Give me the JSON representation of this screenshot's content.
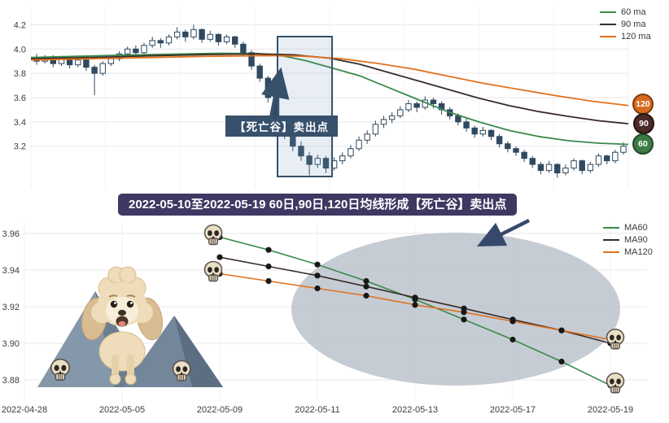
{
  "colors": {
    "candle": "#2e4960",
    "highlight": "#37506b",
    "annotation_bg": "#37506b",
    "banner_bg": "#3e3862",
    "arrow": "#36486b",
    "ellipse": "#bcc3cc",
    "dot": "#181818",
    "grid": "#e9e9ec"
  },
  "top_chart": {
    "legend": [
      {
        "label": "60 ma",
        "color": "#3a8a4d"
      },
      {
        "label": "90 ma",
        "color": "#3a2d28"
      },
      {
        "label": "120 ma",
        "color": "#e2711d"
      }
    ],
    "annotation_label": "【死亡谷】卖出点",
    "badges": [
      {
        "label": "120",
        "bg": "#d8691f",
        "border": "#7a3c10"
      },
      {
        "label": "90",
        "bg": "#4a2b26",
        "border": "#241310"
      },
      {
        "label": "60",
        "bg": "#3c7b47",
        "border": "#1f4a28"
      }
    ]
  },
  "banner": {
    "text": "2022-05-10至2022-05-19 60日,90日,120日均线形成【死亡谷】卖出点"
  },
  "bottom_chart": {
    "legend": [
      {
        "label": "MA60",
        "color": "#3a8a4d"
      },
      {
        "label": "MA90",
        "color": "#3a2d28"
      },
      {
        "label": "MA120",
        "color": "#e2711d"
      }
    ]
  },
  "chart_data": [
    {
      "type": "candlestick",
      "title": "",
      "ylim": [
        2.85,
        4.35
      ],
      "y_ticks": [
        4.2,
        4.0,
        3.8,
        3.6,
        3.4,
        3.2
      ],
      "legend": [
        "60 ma",
        "90 ma",
        "120 ma"
      ],
      "annotation": "【死亡谷】卖出点",
      "highlight_region_note": "死亡谷卖出点区间",
      "ohlc": [
        [
          3.93,
          3.96,
          3.87,
          3.9
        ],
        [
          3.9,
          3.95,
          3.88,
          3.93
        ],
        [
          3.93,
          3.95,
          3.85,
          3.88
        ],
        [
          3.88,
          3.94,
          3.86,
          3.92
        ],
        [
          3.92,
          3.93,
          3.84,
          3.87
        ],
        [
          3.87,
          3.93,
          3.85,
          3.91
        ],
        [
          3.91,
          3.92,
          3.82,
          3.85
        ],
        [
          3.85,
          3.87,
          3.62,
          3.8
        ],
        [
          3.8,
          3.9,
          3.78,
          3.88
        ],
        [
          3.88,
          3.94,
          3.86,
          3.92
        ],
        [
          3.92,
          3.98,
          3.9,
          3.96
        ],
        [
          3.96,
          4.02,
          3.94,
          4.0
        ],
        [
          4.0,
          4.03,
          3.94,
          3.97
        ],
        [
          3.97,
          4.05,
          3.95,
          4.03
        ],
        [
          4.03,
          4.1,
          4.01,
          4.07
        ],
        [
          4.07,
          4.09,
          4.01,
          4.05
        ],
        [
          4.05,
          4.12,
          4.03,
          4.1
        ],
        [
          4.1,
          4.18,
          4.08,
          4.14
        ],
        [
          4.14,
          4.16,
          4.06,
          4.1
        ],
        [
          4.1,
          4.2,
          4.08,
          4.16
        ],
        [
          4.16,
          4.17,
          4.05,
          4.08
        ],
        [
          4.08,
          4.15,
          4.06,
          4.12
        ],
        [
          4.12,
          4.13,
          4.03,
          4.06
        ],
        [
          4.06,
          4.12,
          4.04,
          4.1
        ],
        [
          4.1,
          4.11,
          4.01,
          4.04
        ],
        [
          4.04,
          4.06,
          3.94,
          3.97
        ],
        [
          3.97,
          3.99,
          3.83,
          3.86
        ],
        [
          3.86,
          3.88,
          3.73,
          3.76
        ],
        [
          3.76,
          3.78,
          3.56,
          3.6
        ],
        [
          3.6,
          3.62,
          3.38,
          3.42
        ],
        [
          3.42,
          3.44,
          3.26,
          3.3
        ],
        [
          3.3,
          3.33,
          3.16,
          3.2
        ],
        [
          3.2,
          3.24,
          3.08,
          3.12
        ],
        [
          3.12,
          3.15,
          2.96,
          3.05
        ],
        [
          3.05,
          3.13,
          3.02,
          3.1
        ],
        [
          3.1,
          3.12,
          2.98,
          3.02
        ],
        [
          3.02,
          3.11,
          3.0,
          3.08
        ],
        [
          3.08,
          3.15,
          3.05,
          3.12
        ],
        [
          3.12,
          3.21,
          3.1,
          3.18
        ],
        [
          3.18,
          3.28,
          3.16,
          3.25
        ],
        [
          3.25,
          3.33,
          3.22,
          3.3
        ],
        [
          3.3,
          3.41,
          3.28,
          3.38
        ],
        [
          3.38,
          3.45,
          3.35,
          3.42
        ],
        [
          3.42,
          3.48,
          3.39,
          3.45
        ],
        [
          3.45,
          3.53,
          3.43,
          3.5
        ],
        [
          3.5,
          3.58,
          3.48,
          3.55
        ],
        [
          3.55,
          3.57,
          3.48,
          3.52
        ],
        [
          3.52,
          3.61,
          3.5,
          3.58
        ],
        [
          3.58,
          3.6,
          3.51,
          3.55
        ],
        [
          3.55,
          3.57,
          3.46,
          3.5
        ],
        [
          3.5,
          3.52,
          3.42,
          3.45
        ],
        [
          3.45,
          3.47,
          3.37,
          3.4
        ],
        [
          3.4,
          3.43,
          3.32,
          3.35
        ],
        [
          3.35,
          3.37,
          3.27,
          3.3
        ],
        [
          3.3,
          3.36,
          3.28,
          3.33
        ],
        [
          3.33,
          3.34,
          3.25,
          3.28
        ],
        [
          3.28,
          3.3,
          3.19,
          3.22
        ],
        [
          3.22,
          3.24,
          3.15,
          3.18
        ],
        [
          3.18,
          3.2,
          3.12,
          3.15
        ],
        [
          3.15,
          3.17,
          3.07,
          3.1
        ],
        [
          3.1,
          3.12,
          3.02,
          3.05
        ],
        [
          3.05,
          3.07,
          2.97,
          3.0
        ],
        [
          3.0,
          3.08,
          2.98,
          3.05
        ],
        [
          3.05,
          3.06,
          2.94,
          2.98
        ],
        [
          2.98,
          3.05,
          2.96,
          3.02
        ],
        [
          3.02,
          3.1,
          3.0,
          3.08
        ],
        [
          3.08,
          3.09,
          2.97,
          3.0
        ],
        [
          3.0,
          3.07,
          2.98,
          3.05
        ],
        [
          3.05,
          3.14,
          3.03,
          3.12
        ],
        [
          3.12,
          3.13,
          3.05,
          3.08
        ],
        [
          3.08,
          3.17,
          3.06,
          3.15
        ],
        [
          3.15,
          3.23,
          3.13,
          3.2
        ]
      ],
      "ma": {
        "ma60": [
          [
            0,
            3.93
          ],
          [
            0.08,
            3.94
          ],
          [
            0.16,
            3.95
          ],
          [
            0.24,
            3.958
          ],
          [
            0.32,
            3.965
          ],
          [
            0.38,
            3.962
          ],
          [
            0.42,
            3.945
          ],
          [
            0.46,
            3.905
          ],
          [
            0.5,
            3.85
          ],
          [
            0.55,
            3.78
          ],
          [
            0.6,
            3.68
          ],
          [
            0.65,
            3.58
          ],
          [
            0.7,
            3.48
          ],
          [
            0.75,
            3.4
          ],
          [
            0.8,
            3.33
          ],
          [
            0.85,
            3.28
          ],
          [
            0.9,
            3.245
          ],
          [
            0.95,
            3.225
          ],
          [
            1,
            3.215
          ]
        ],
        "ma90": [
          [
            0,
            3.92
          ],
          [
            0.1,
            3.93
          ],
          [
            0.2,
            3.944
          ],
          [
            0.3,
            3.955
          ],
          [
            0.38,
            3.96
          ],
          [
            0.44,
            3.952
          ],
          [
            0.5,
            3.925
          ],
          [
            0.55,
            3.875
          ],
          [
            0.6,
            3.805
          ],
          [
            0.65,
            3.735
          ],
          [
            0.7,
            3.665
          ],
          [
            0.75,
            3.595
          ],
          [
            0.8,
            3.535
          ],
          [
            0.85,
            3.485
          ],
          [
            0.9,
            3.445
          ],
          [
            0.95,
            3.41
          ],
          [
            1,
            3.385
          ]
        ],
        "ma120": [
          [
            0,
            3.91
          ],
          [
            0.1,
            3.92
          ],
          [
            0.2,
            3.93
          ],
          [
            0.3,
            3.94
          ],
          [
            0.4,
            3.946
          ],
          [
            0.46,
            3.94
          ],
          [
            0.52,
            3.92
          ],
          [
            0.58,
            3.882
          ],
          [
            0.64,
            3.835
          ],
          [
            0.7,
            3.775
          ],
          [
            0.76,
            3.715
          ],
          [
            0.82,
            3.665
          ],
          [
            0.88,
            3.615
          ],
          [
            0.94,
            3.57
          ],
          [
            1,
            3.535
          ]
        ]
      }
    },
    {
      "type": "line",
      "title": "",
      "x_axis_ticks": [
        "2022-04-28",
        "2022-05-05",
        "2022-05-09",
        "2022-05-11",
        "2022-05-13",
        "2022-05-17",
        "2022-05-19"
      ],
      "x": [
        "2022-05-09",
        "2022-05-10",
        "2022-05-11",
        "2022-05-12",
        "2022-05-13",
        "2022-05-16",
        "2022-05-17",
        "2022-05-18",
        "2022-05-19"
      ],
      "series": [
        {
          "name": "MA60",
          "color": "#3a8a4d",
          "values": [
            3.958,
            3.951,
            3.943,
            3.934,
            3.924,
            3.913,
            3.902,
            3.89,
            3.877
          ]
        },
        {
          "name": "MA90",
          "color": "#3a2d28",
          "values": [
            3.947,
            3.942,
            3.937,
            3.931,
            3.925,
            3.919,
            3.913,
            3.907,
            3.9
          ]
        },
        {
          "name": "MA120",
          "color": "#e2711d",
          "values": [
            3.938,
            3.934,
            3.93,
            3.926,
            3.921,
            3.917,
            3.912,
            3.907,
            3.902
          ]
        }
      ],
      "ylim": [
        3.868,
        3.966
      ],
      "y_ticks": [
        3.96,
        3.94,
        3.92,
        3.9,
        3.88
      ],
      "legend": [
        "MA60",
        "MA90",
        "MA120"
      ],
      "legend_position": "upper right",
      "grid": true
    }
  ]
}
